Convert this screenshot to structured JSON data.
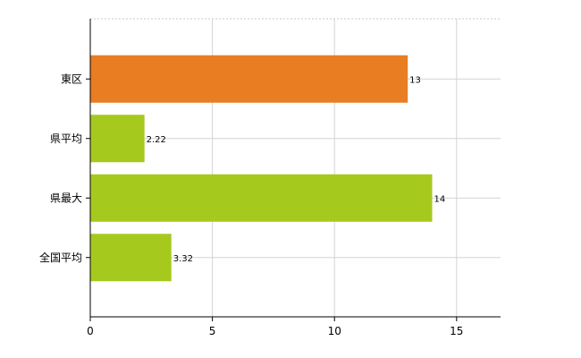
{
  "chart_data": {
    "type": "bar",
    "orientation": "horizontal",
    "categories": [
      "東区",
      "県平均",
      "県最大",
      "全国平均"
    ],
    "values": [
      13,
      2.22,
      14,
      3.32
    ],
    "value_labels": [
      "13",
      "2.22",
      "14",
      "3.32"
    ],
    "colors": [
      "#e87d22",
      "#a6c91e",
      "#a6c91e",
      "#a6c91e"
    ],
    "title": "",
    "xlabel": "",
    "ylabel": "",
    "xlim": [
      0,
      16.8
    ],
    "xticks": [
      0,
      5,
      10,
      15
    ],
    "xtick_labels": [
      "0",
      "5",
      "10",
      "15"
    ],
    "grid": true
  }
}
